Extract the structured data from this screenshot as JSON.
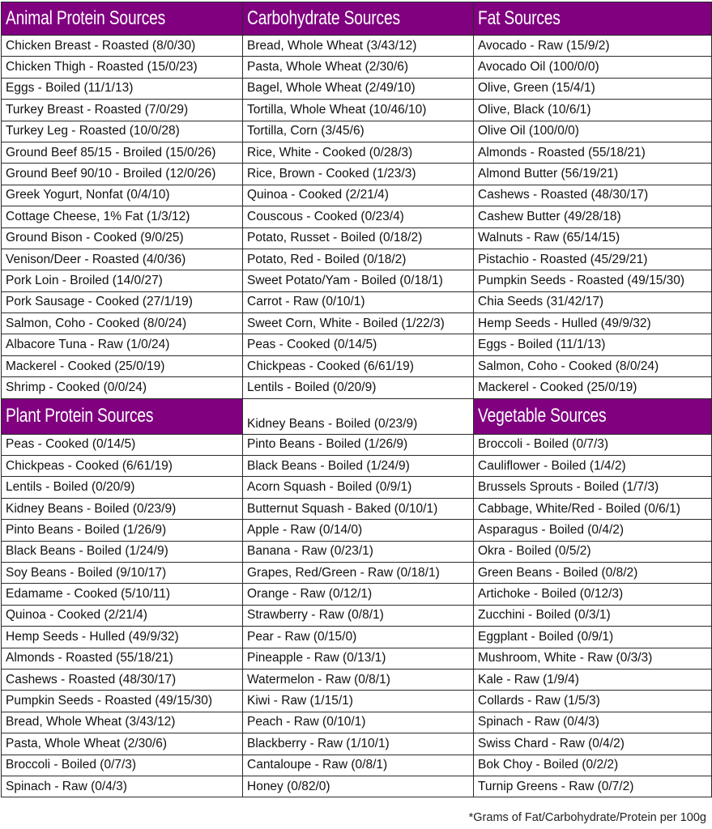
{
  "colors": {
    "header_bg": "#800080",
    "header_text": "#ffffff"
  },
  "top": {
    "headers": [
      "Animal Protein Sources",
      "Carbohydrate Sources",
      "Fat Sources"
    ],
    "columns": [
      [
        "Chicken Breast - Roasted (8/0/30)",
        "Chicken Thigh - Roasted (15/0/23)",
        "Eggs - Boiled (11/1/13)",
        "Turkey Breast - Roasted (7/0/29)",
        "Turkey Leg - Roasted (10/0/28)",
        "Ground Beef 85/15 - Broiled (15/0/26)",
        "Ground Beef 90/10 - Broiled (12/0/26)",
        "Greek Yogurt, Nonfat (0/4/10)",
        "Cottage Cheese, 1% Fat (1/3/12)",
        "Ground Bison - Cooked (9/0/25)",
        "Venison/Deer - Roasted (4/0/36)",
        "Pork Loin - Broiled (14/0/27)",
        "Pork Sausage - Cooked (27/1/19)",
        "Salmon, Coho - Cooked (8/0/24)",
        "Albacore Tuna - Raw (1/0/24)",
        "Mackerel - Cooked (25/0/19)",
        "Shrimp - Cooked (0/0/24)"
      ],
      [
        "Bread, Whole Wheat (3/43/12)",
        "Pasta, Whole Wheat (2/30/6)",
        "Bagel, Whole Wheat (2/49/10)",
        "Tortilla, Whole Wheat (10/46/10)",
        "Tortilla, Corn (3/45/6)",
        "Rice, White - Cooked (0/28/3)",
        "Rice, Brown - Cooked (1/23/3)",
        "Quinoa - Cooked (2/21/4)",
        "Couscous - Cooked (0/23/4)",
        "Potato, Russet - Boiled (0/18/2)",
        "Potato, Red - Boiled (0/18/2)",
        "Sweet Potato/Yam - Boiled (0/18/1)",
        "Carrot - Raw (0/10/1)",
        "Sweet Corn, White - Boiled (1/22/3)",
        "Peas - Cooked (0/14/5)",
        "Chickpeas - Cooked (6/61/19)",
        "Lentils - Boiled (0/20/9)"
      ],
      [
        "Avocado - Raw (15/9/2)",
        "Avocado Oil (100/0/0)",
        "Olive, Green (15/4/1)",
        "Olive, Black (10/6/1)",
        "Olive Oil (100/0/0)",
        "Almonds - Roasted (55/18/21)",
        "Almond Butter (56/19/21)",
        "Cashews - Roasted (48/30/17)",
        "Cashew Butter (49/28/18)",
        "Walnuts - Raw (65/14/15)",
        "Pistachio - Roasted (45/29/21)",
        "Pumpkin Seeds - Roasted (49/15/30)",
        "Chia Seeds (31/42/17)",
        "Hemp Seeds - Hulled (49/9/32)",
        "Eggs - Boiled (11/1/13)",
        "Salmon, Coho - Cooked (8/0/24)",
        "Mackerel - Cooked (25/0/19)"
      ]
    ]
  },
  "bottom": {
    "headers": [
      "Plant Protein Sources",
      "Kidney Beans - Boiled (0/23/9)",
      "Vegetable Sources"
    ],
    "columns": [
      [
        "Peas - Cooked (0/14/5)",
        "Chickpeas - Cooked (6/61/19)",
        "Lentils - Boiled (0/20/9)",
        "Kidney Beans - Boiled (0/23/9)",
        "Pinto Beans - Boiled (1/26/9)",
        "Black Beans - Boiled (1/24/9)",
        "Soy Beans - Boiled (9/10/17)",
        "Edamame - Cooked (5/10/11)",
        "Quinoa - Cooked (2/21/4)",
        "Hemp Seeds - Hulled (49/9/32)",
        "Almonds - Roasted (55/18/21)",
        "Cashews - Roasted (48/30/17)",
        "Pumpkin Seeds - Roasted (49/15/30)",
        "Bread, Whole Wheat (3/43/12)",
        "Pasta, Whole Wheat (2/30/6)",
        "Broccoli - Boiled (0/7/3)",
        "Spinach - Raw (0/4/3)"
      ],
      [
        "Pinto Beans - Boiled (1/26/9)",
        "Black Beans - Boiled (1/24/9)",
        "Acorn Squash - Boiled (0/9/1)",
        "Butternut Squash - Baked (0/10/1)",
        "Apple - Raw (0/14/0)",
        "Banana - Raw (0/23/1)",
        "Grapes, Red/Green - Raw (0/18/1)",
        "Orange - Raw (0/12/1)",
        "Strawberry - Raw (0/8/1)",
        "Pear - Raw (0/15/0)",
        "Pineapple - Raw (0/13/1)",
        "Watermelon - Raw (0/8/1)",
        "Kiwi - Raw (1/15/1)",
        "Peach - Raw (0/10/1)",
        "Blackberry - Raw (1/10/1)",
        "Cantaloupe - Raw (0/8/1)",
        "Honey (0/82/0)"
      ],
      [
        "Broccoli - Boiled (0/7/3)",
        "Cauliflower - Boiled (1/4/2)",
        "Brussels Sprouts - Boiled (1/7/3)",
        "Cabbage, White/Red - Boiled (0/6/1)",
        "Asparagus - Boiled (0/4/2)",
        "Okra - Boiled (0/5/2)",
        "Green Beans - Boiled (0/8/2)",
        "Artichoke - Boiled (0/12/3)",
        "Zucchini - Boiled (0/3/1)",
        "Eggplant - Boiled (0/9/1)",
        "Mushroom, White - Raw (0/3/3)",
        "Kale - Raw (1/9/4)",
        "Collards - Raw (1/5/3)",
        "Spinach - Raw (0/4/3)",
        "Swiss Chard - Raw (0/4/2)",
        "Bok Choy - Boiled (0/2/2)",
        "Turnip Greens - Raw (0/7/2)"
      ]
    ]
  },
  "footnote": "*Grams of Fat/Carbohydrate/Protein per 100g"
}
